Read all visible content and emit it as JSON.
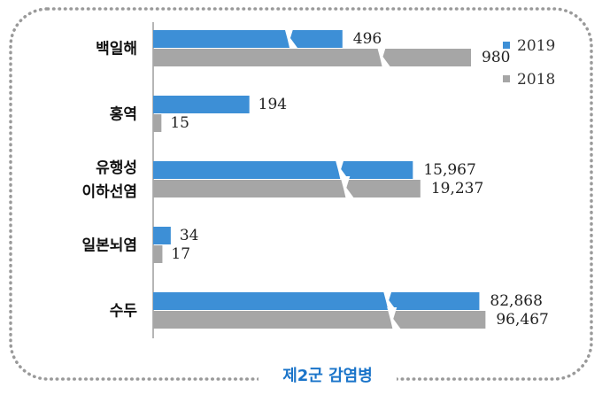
{
  "chart_data": {
    "type": "bar",
    "orientation": "horizontal",
    "axis_break": true,
    "title": "제2군 감염병",
    "categories": [
      [
        "백일해"
      ],
      [
        "홍역"
      ],
      [
        "유행성",
        "이하선염"
      ],
      [
        "일본뇌염"
      ],
      [
        "수두"
      ]
    ],
    "series": [
      {
        "name": "2019",
        "color": "#3d8fd6",
        "values": [
          496,
          194,
          15967,
          34,
          82868
        ],
        "labels": [
          "496",
          "194",
          "15,967",
          "34",
          "82,868"
        ]
      },
      {
        "name": "2018",
        "color": "#a6a6a6",
        "values": [
          980,
          15,
          19237,
          17,
          96467
        ],
        "labels": [
          "980",
          "15",
          "19,237",
          "17",
          "96,467"
        ]
      }
    ],
    "legend_position": "top-right",
    "grid": false
  }
}
